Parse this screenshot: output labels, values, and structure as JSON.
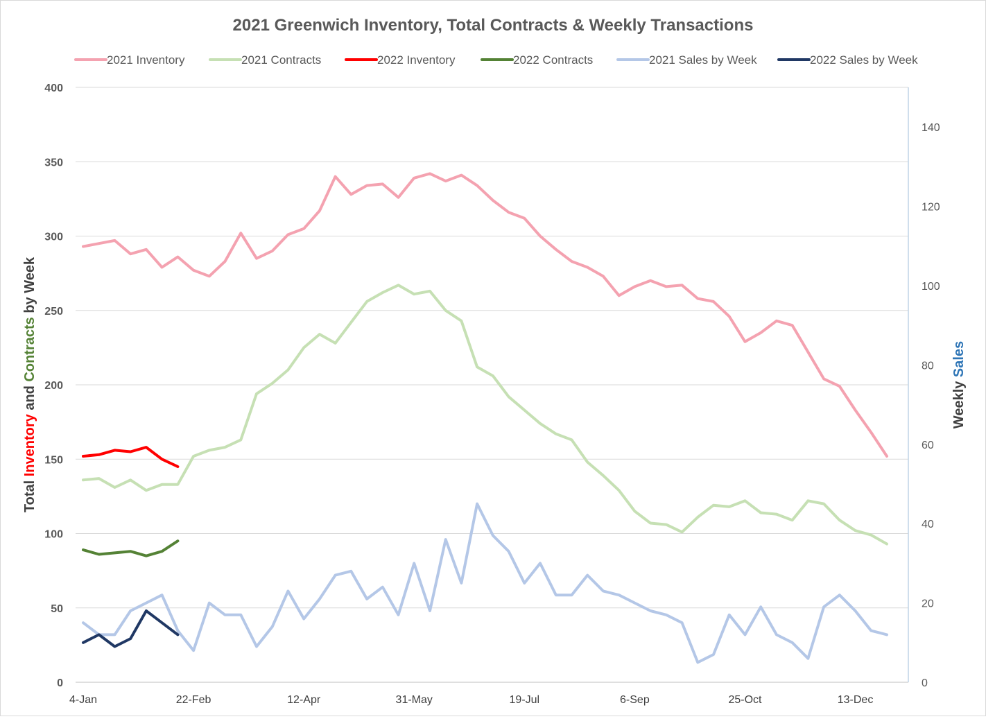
{
  "chart_data": {
    "type": "line",
    "title": "2021 Greenwich Inventory, Total Contracts & Weekly Transactions",
    "ylabel_left_parts": [
      {
        "text": "Total ",
        "color": "#404040"
      },
      {
        "text": "Inventory",
        "color": "#ff0000"
      },
      {
        "text": " and ",
        "color": "#404040"
      },
      {
        "text": "Contracts",
        "color": "#548235"
      },
      {
        "text": " by Week",
        "color": "#404040"
      }
    ],
    "ylabel_right_parts": [
      {
        "text": "Weekly ",
        "color": "#404040"
      },
      {
        "text": "Sales",
        "color": "#2e75b6"
      }
    ],
    "x_tick_labels": [
      "4-Jan",
      "22-Feb",
      "12-Apr",
      "31-May",
      "19-Jul",
      "6-Sep",
      "25-Oct",
      "13-Dec"
    ],
    "x_tick_positions": [
      0,
      7,
      14,
      21,
      28,
      35,
      42,
      49
    ],
    "x_count": 52,
    "ylim_left": [
      0,
      400
    ],
    "yticks_left": [
      0,
      50,
      100,
      150,
      200,
      250,
      300,
      350,
      400
    ],
    "ylim_right": [
      0,
      150
    ],
    "yticks_right": [
      0,
      20,
      40,
      60,
      80,
      100,
      120,
      140
    ],
    "grid": true,
    "legend_position": "top",
    "series": [
      {
        "name": "2021 Inventory",
        "axis": "left",
        "color": "#f4a2b0",
        "values": [
          293,
          295,
          297,
          288,
          291,
          279,
          286,
          277,
          273,
          283,
          302,
          285,
          290,
          301,
          305,
          317,
          340,
          328,
          334,
          335,
          326,
          339,
          342,
          337,
          341,
          334,
          324,
          316,
          312,
          300,
          291,
          283,
          279,
          273,
          260,
          266,
          270,
          266,
          267,
          258,
          256,
          246,
          229,
          235,
          243,
          240,
          222,
          204,
          199,
          183,
          168,
          152
        ]
      },
      {
        "name": "2021 Contracts",
        "axis": "left",
        "color": "#c6e0b4",
        "values": [
          136,
          137,
          131,
          136,
          129,
          133,
          133,
          152,
          156,
          158,
          163,
          194,
          201,
          210,
          225,
          234,
          228,
          242,
          256,
          262,
          267,
          261,
          263,
          250,
          243,
          212,
          206,
          192,
          183,
          174,
          167,
          163,
          148,
          139,
          129,
          115,
          107,
          106,
          101,
          111,
          119,
          118,
          122,
          114,
          113,
          109,
          122,
          120,
          109,
          102,
          99,
          93
        ]
      },
      {
        "name": "2022 Inventory",
        "axis": "left",
        "color": "#ff0000",
        "values": [
          152,
          153,
          156,
          155,
          158,
          150,
          145
        ]
      },
      {
        "name": "2022 Contracts",
        "axis": "left",
        "color": "#548235",
        "values": [
          89,
          86,
          87,
          88,
          85,
          88,
          95
        ]
      },
      {
        "name": "2021 Sales by Week",
        "axis": "right",
        "color": "#b4c7e7",
        "values": [
          15,
          12,
          12,
          18,
          20,
          22,
          13,
          8,
          20,
          17,
          17,
          9,
          14,
          23,
          16,
          21,
          27,
          28,
          21,
          24,
          17,
          30,
          18,
          36,
          25,
          45,
          37,
          33,
          25,
          30,
          22,
          22,
          27,
          23,
          22,
          20,
          18,
          17,
          15,
          5,
          7,
          17,
          12,
          19,
          12,
          10,
          6,
          19,
          22,
          18,
          13,
          12
        ]
      },
      {
        "name": "2022 Sales by Week",
        "axis": "right",
        "color": "#203864",
        "values": [
          10,
          12,
          9,
          11,
          18,
          15,
          12
        ]
      }
    ]
  }
}
